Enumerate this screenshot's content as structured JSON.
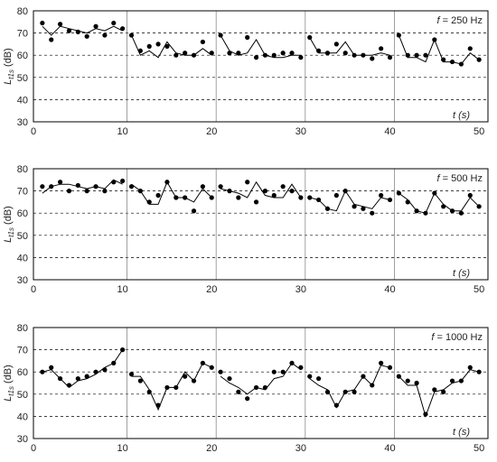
{
  "chart_data": [
    {
      "type": "scatter",
      "freq_label": "f = 250 Hz",
      "ylabel": "L_t1s (dB)",
      "xlabel": "t (s)",
      "ylim": [
        30,
        80
      ],
      "xlim": [
        0,
        51
      ],
      "yticks": [
        30,
        40,
        50,
        60,
        70,
        80
      ],
      "xticks": [
        0,
        10,
        20,
        30,
        40,
        50
      ],
      "grid_y": [
        40,
        50,
        60,
        70
      ],
      "segment_breaks": [
        10.5,
        20.5,
        30.5,
        40.5
      ],
      "series": [
        {
          "type": "scatter",
          "x": [
            1,
            2,
            3,
            4,
            5,
            6,
            7,
            8,
            9,
            10,
            11,
            12,
            13,
            14,
            15,
            16,
            17,
            18,
            19,
            20,
            21,
            22,
            23,
            24,
            25,
            26,
            27,
            28,
            29,
            30,
            31,
            32,
            33,
            34,
            35,
            36,
            37,
            38,
            39,
            40,
            41,
            42,
            43,
            44,
            45,
            46,
            47,
            48,
            49,
            50
          ],
          "y": [
            74.5,
            67,
            74,
            71,
            70.5,
            68.5,
            73,
            69,
            74.5,
            72,
            69,
            62,
            64,
            65,
            64,
            60,
            61,
            60,
            66,
            61,
            69,
            61,
            61,
            68,
            59,
            60,
            60,
            61,
            61,
            59,
            68,
            62,
            61,
            65,
            61,
            60,
            60,
            58.5,
            63,
            59,
            69,
            60,
            60,
            60,
            67,
            58,
            57,
            56,
            63,
            58
          ]
        },
        {
          "type": "line",
          "x": [
            1,
            2,
            3,
            4,
            5,
            6,
            7,
            8,
            9,
            10,
            11,
            12,
            13,
            14,
            15,
            16,
            17,
            18,
            19,
            20,
            21,
            22,
            23,
            24,
            25,
            26,
            27,
            28,
            29,
            30,
            31,
            32,
            33,
            34,
            35,
            36,
            37,
            38,
            39,
            40,
            41,
            42,
            43,
            44,
            45,
            46,
            47,
            48,
            49,
            50
          ],
          "y": [
            73,
            69,
            73,
            72,
            71,
            70,
            72,
            71,
            73,
            71,
            69,
            60,
            62,
            59,
            66,
            61,
            60,
            60,
            63,
            60,
            69,
            62,
            60,
            61,
            67,
            60,
            59,
            59,
            60,
            60,
            68,
            61,
            61,
            61,
            66,
            60,
            60,
            60,
            61,
            60,
            69,
            59,
            59,
            57,
            67,
            57,
            57,
            56,
            61,
            58
          ]
        }
      ]
    },
    {
      "type": "scatter",
      "freq_label": "f = 500 Hz",
      "ylabel": "L_t1s (dB)",
      "xlabel": "t (s)",
      "ylim": [
        30,
        80
      ],
      "xlim": [
        0,
        51
      ],
      "yticks": [
        30,
        40,
        50,
        60,
        70,
        80
      ],
      "xticks": [
        0,
        10,
        20,
        30,
        40,
        50
      ],
      "grid_y": [
        40,
        50,
        60,
        70
      ],
      "segment_breaks": [
        10.5,
        20.5,
        30.5,
        40.5
      ],
      "series": [
        {
          "type": "scatter",
          "x": [
            1,
            2,
            3,
            4,
            5,
            6,
            7,
            8,
            9,
            10,
            11,
            12,
            13,
            14,
            15,
            16,
            17,
            18,
            19,
            20,
            21,
            22,
            23,
            24,
            25,
            26,
            27,
            28,
            29,
            30,
            31,
            32,
            33,
            34,
            35,
            36,
            37,
            38,
            39,
            40,
            41,
            42,
            43,
            44,
            45,
            46,
            47,
            48,
            49,
            50
          ],
          "y": [
            72,
            72,
            74,
            70,
            72.5,
            70,
            72,
            70,
            74,
            74.5,
            72,
            70,
            65,
            68,
            74,
            67,
            67,
            61,
            72,
            67,
            72,
            70,
            67,
            74,
            65,
            70,
            68,
            72,
            70,
            67,
            67,
            66,
            62,
            68,
            70,
            63,
            62,
            60,
            68,
            66,
            69,
            65,
            61,
            60,
            69,
            63,
            61,
            60,
            68,
            63
          ]
        },
        {
          "type": "line",
          "x": [
            1,
            2,
            3,
            4,
            5,
            6,
            7,
            8,
            9,
            10,
            11,
            12,
            13,
            14,
            15,
            16,
            17,
            18,
            19,
            20,
            21,
            22,
            23,
            24,
            25,
            26,
            27,
            28,
            29,
            30,
            31,
            32,
            33,
            34,
            35,
            36,
            37,
            38,
            39,
            40,
            41,
            42,
            43,
            44,
            45,
            46,
            47,
            48,
            49,
            50
          ],
          "y": [
            69,
            72,
            73,
            73,
            72,
            71,
            72,
            71,
            75,
            73,
            73,
            70,
            64,
            64,
            74,
            67,
            67,
            65,
            71,
            67,
            71,
            70,
            69,
            67,
            74,
            68,
            67,
            67,
            73,
            67,
            67,
            66,
            62,
            61,
            70,
            64,
            63,
            62,
            67,
            66,
            69,
            66,
            61,
            60,
            69,
            64,
            61,
            61,
            67,
            63
          ]
        }
      ]
    },
    {
      "type": "scatter",
      "freq_label": "f = 1000 Hz",
      "ylabel": "L_t1s (dB)",
      "xlabel": "t (s)",
      "ylim": [
        30,
        80
      ],
      "xlim": [
        0,
        51
      ],
      "yticks": [
        30,
        40,
        50,
        60,
        70,
        80
      ],
      "xticks": [
        0,
        10,
        20,
        30,
        40,
        50
      ],
      "grid_y": [
        40,
        50,
        60,
        70
      ],
      "segment_breaks": [
        10.5,
        20.5,
        30.5,
        40.5
      ],
      "series": [
        {
          "type": "scatter",
          "x": [
            1,
            2,
            3,
            4,
            5,
            6,
            7,
            8,
            9,
            10,
            11,
            12,
            13,
            14,
            15,
            16,
            17,
            18,
            19,
            20,
            21,
            22,
            23,
            24,
            25,
            26,
            27,
            28,
            29,
            30,
            31,
            32,
            33,
            34,
            35,
            36,
            37,
            38,
            39,
            40,
            41,
            42,
            43,
            44,
            45,
            46,
            47,
            48,
            49,
            50
          ],
          "y": [
            60,
            62,
            57,
            54,
            57,
            58,
            60,
            61,
            64,
            70,
            59,
            56,
            51,
            45,
            53,
            53,
            58,
            56,
            64,
            62,
            60,
            57,
            51,
            48,
            53,
            53,
            60,
            60,
            64,
            62,
            58,
            57,
            51,
            45,
            51,
            51,
            58,
            54,
            64,
            62,
            58,
            56,
            55,
            41,
            52,
            51,
            56,
            56,
            62,
            60
          ]
        },
        {
          "type": "line",
          "x": [
            1,
            2,
            3,
            4,
            5,
            6,
            7,
            8,
            9,
            10,
            11,
            12,
            13,
            14,
            15,
            16,
            17,
            18,
            19,
            20,
            21,
            22,
            23,
            24,
            25,
            26,
            27,
            28,
            29,
            30,
            31,
            32,
            33,
            34,
            35,
            36,
            37,
            38,
            39,
            40,
            41,
            42,
            43,
            44,
            45,
            46,
            47,
            48,
            49,
            50
          ],
          "y": [
            60,
            61,
            57,
            53,
            56,
            57,
            59,
            62,
            64,
            70,
            58,
            58,
            52,
            43,
            53,
            53,
            60,
            56,
            64,
            62,
            58,
            55,
            53,
            50,
            53,
            52,
            57,
            58,
            64,
            61,
            57,
            54,
            52,
            44,
            51,
            52,
            58,
            54,
            63,
            62,
            58,
            54,
            54,
            40,
            51,
            52,
            55,
            56,
            61,
            60
          ]
        }
      ]
    }
  ]
}
